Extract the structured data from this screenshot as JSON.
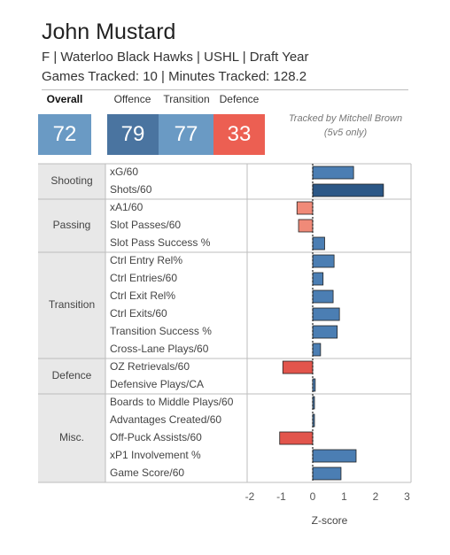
{
  "header": {
    "player_name": "John Mustard",
    "info_line": "F | Waterloo Black Hawks | USHL | Draft Year",
    "tracking_line": "Games Tracked: 10 | Minutes Tracked: 128.2"
  },
  "tiles": {
    "overall": {
      "label": "Overall",
      "value": "72",
      "color": "#6a9ac4"
    },
    "offence": {
      "label": "Offence",
      "value": "79",
      "color": "#4a74a0"
    },
    "transition": {
      "label": "Transition",
      "value": "77",
      "color": "#6a9ac4"
    },
    "defence": {
      "label": "Defence",
      "value": "33",
      "color": "#ec5f52"
    }
  },
  "tracked_by": {
    "line1": "Tracked by Mitchell Brown",
    "line2": "(5v5 only)"
  },
  "colors": {
    "positive_dark": "#2b5786",
    "positive_light": "#4b7eb3",
    "negative": "#f08a78",
    "negative_strong": "#e2554c"
  },
  "chart_data": {
    "type": "bar",
    "orientation": "horizontal",
    "xlabel": "Z-score",
    "xlim": [
      -2.4,
      3
    ],
    "xticks": [
      -2,
      -1,
      0,
      1,
      2,
      3
    ],
    "zero_line": "dotted",
    "groups": [
      {
        "name": "Shooting",
        "metrics": [
          {
            "label": "xG/60",
            "value": 1.3
          },
          {
            "label": "Shots/60",
            "value": 2.25
          }
        ]
      },
      {
        "name": "Passing",
        "metrics": [
          {
            "label": "xA1/60",
            "value": -0.5
          },
          {
            "label": "Slot Passes/60",
            "value": -0.45
          },
          {
            "label": "Slot Pass Success %",
            "value": 0.38
          }
        ]
      },
      {
        "name": "Transition",
        "metrics": [
          {
            "label": "Ctrl Entry Rel%",
            "value": 0.68
          },
          {
            "label": "Ctrl Entries/60",
            "value": 0.33
          },
          {
            "label": "Ctrl Exit Rel%",
            "value": 0.65
          },
          {
            "label": "Ctrl Exits/60",
            "value": 0.85
          },
          {
            "label": "Transition Success %",
            "value": 0.78
          },
          {
            "label": "Cross-Lane Plays/60",
            "value": 0.25
          }
        ]
      },
      {
        "name": "Defence",
        "metrics": [
          {
            "label": "OZ Retrievals/60",
            "value": -0.95
          },
          {
            "label": "Defensive Plays/CA",
            "value": 0.08
          }
        ]
      },
      {
        "name": "Misc.",
        "metrics": [
          {
            "label": "Boards to Middle Plays/60",
            "value": 0.02
          },
          {
            "label": "Advantages Created/60",
            "value": 0.01
          },
          {
            "label": "Off-Puck Assists/60",
            "value": -1.05
          },
          {
            "label": "xP1 Involvement %",
            "value": 1.38
          },
          {
            "label": "Game Score/60",
            "value": 0.9
          }
        ]
      }
    ]
  }
}
